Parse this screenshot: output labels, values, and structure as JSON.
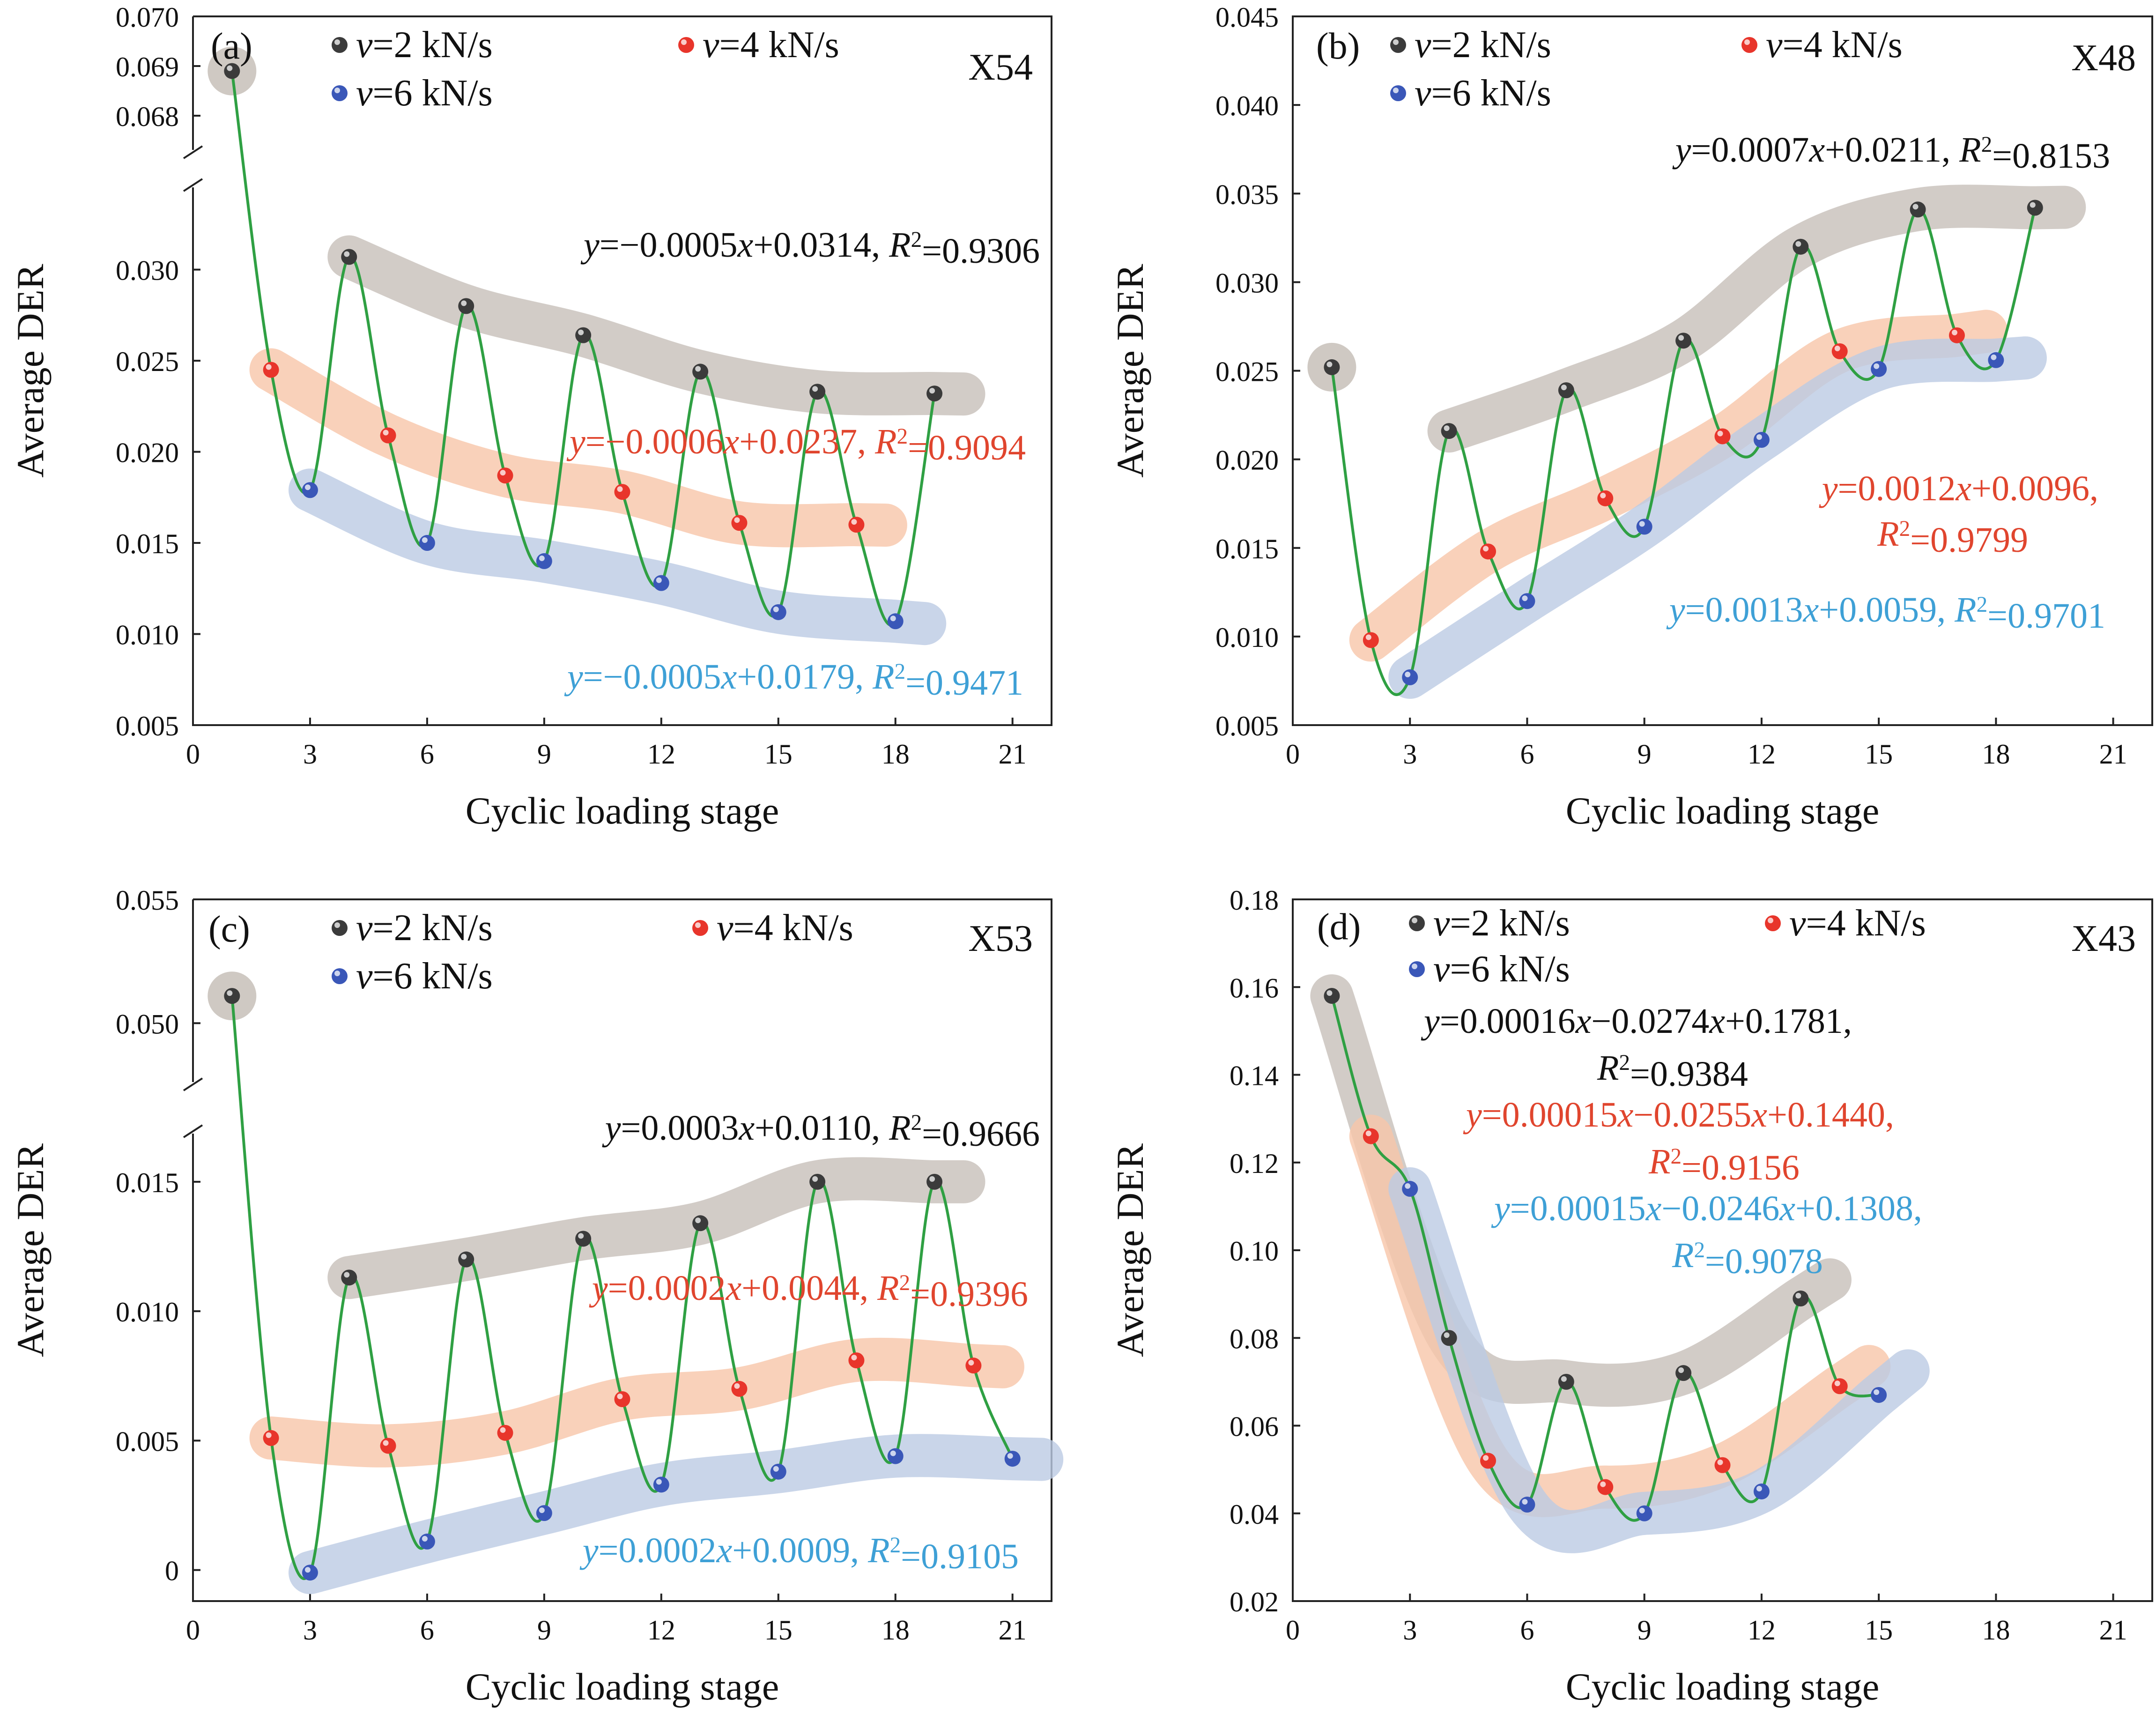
{
  "colors": {
    "s2": "#3b3b3b",
    "s4": "#e8352b",
    "s6": "#3a57b8",
    "curve": "#2fa043",
    "band2": "#c7bfb9",
    "band4": "#f8c5a9",
    "band6": "#bccae4",
    "eq2": "#111111",
    "eq4": "#e0452e",
    "eq6": "#3ea0d6"
  },
  "chart_data": [
    {
      "type": "line",
      "panel": "(a)",
      "specimen": "X54",
      "xlabel": "Cyclic loading stage",
      "ylabel": "Average DER",
      "xlim": [
        0,
        22
      ],
      "xticks": [
        "0",
        "3",
        "6",
        "9",
        "12",
        "15",
        "18",
        "21"
      ],
      "yticks_lower": [
        "0.005",
        "0.010",
        "0.015",
        "0.020",
        "0.025",
        "0.030"
      ],
      "yticks_upper": [
        "0.068",
        "0.069",
        "0.070"
      ],
      "ylim_lower": [
        0.005,
        0.034
      ],
      "ylim_upper": [
        0.0675,
        0.07
      ],
      "legend": [
        "v=2 kN/s",
        "v=4 kN/s",
        "v=6 kN/s"
      ],
      "series": [
        {
          "name": "v=2 kN/s",
          "x": [
            1,
            4,
            7,
            10,
            13,
            16,
            19
          ],
          "y": [
            0.0689,
            0.0307,
            0.028,
            0.0264,
            0.0244,
            0.0233,
            0.0232
          ]
        },
        {
          "name": "v=4 kN/s",
          "x": [
            2,
            5,
            8,
            11,
            14,
            17
          ],
          "y": [
            0.0245,
            0.0209,
            0.0187,
            0.0178,
            0.0161,
            0.016
          ]
        },
        {
          "name": "v=6 kN/s",
          "x": [
            3,
            6,
            9,
            12,
            15,
            18
          ],
          "y": [
            0.0179,
            0.015,
            0.014,
            0.0128,
            0.0112,
            0.0107
          ]
        }
      ],
      "equations": [
        {
          "series": "v=2 kN/s",
          "lines": [
            "y=−0.0005x+0.0314, R2=0.9306"
          ]
        },
        {
          "series": "v=4 kN/s",
          "lines": [
            "y=−0.0006x+0.0237, R2=0.9094"
          ]
        },
        {
          "series": "v=6 kN/s",
          "lines": [
            "y=−0.0005x+0.0179, R2=0.9471"
          ]
        }
      ]
    },
    {
      "type": "line",
      "panel": "(b)",
      "specimen": "X48",
      "xlabel": "Cyclic loading stage",
      "ylabel": "Average DER",
      "xlim": [
        0,
        22
      ],
      "xticks": [
        "0",
        "3",
        "6",
        "9",
        "12",
        "15",
        "18",
        "21"
      ],
      "yticks": [
        "0.005",
        "0.010",
        "0.015",
        "0.020",
        "0.025",
        "0.030",
        "0.035",
        "0.040",
        "0.045"
      ],
      "ylim": [
        0.005,
        0.045
      ],
      "legend": [
        "v=2 kN/s",
        "v=4 kN/s",
        "v=6 kN/s"
      ],
      "series": [
        {
          "name": "v=2 kN/s",
          "x": [
            1,
            4,
            7,
            10,
            13,
            16,
            19
          ],
          "y": [
            0.0252,
            0.0216,
            0.0239,
            0.0267,
            0.032,
            0.0341,
            0.0342
          ]
        },
        {
          "name": "v=4 kN/s",
          "x": [
            2,
            5,
            8,
            11,
            14,
            17
          ],
          "y": [
            0.0098,
            0.0148,
            0.0178,
            0.0213,
            0.0261,
            0.027
          ]
        },
        {
          "name": "v=6 kN/s",
          "x": [
            3,
            6,
            9,
            12,
            15,
            18
          ],
          "y": [
            0.0077,
            0.012,
            0.0162,
            0.0211,
            0.0251,
            0.0256
          ]
        }
      ],
      "equations": [
        {
          "series": "v=2 kN/s",
          "lines": [
            "y=0.0007x+0.0211, R2=0.8153"
          ]
        },
        {
          "series": "v=4 kN/s",
          "lines": [
            "y=0.0012x+0.0096,",
            "R2=0.9799"
          ]
        },
        {
          "series": "v=6 kN/s",
          "lines": [
            "y=0.0013x+0.0059, R2=0.9701"
          ]
        }
      ]
    },
    {
      "type": "line",
      "panel": "(c)",
      "specimen": "X53",
      "xlabel": "Cyclic loading stage",
      "ylabel": "Average DER",
      "xlim": [
        0,
        22
      ],
      "xticks": [
        "0",
        "3",
        "6",
        "9",
        "12",
        "15",
        "18",
        "21"
      ],
      "yticks_lower": [
        "0",
        "0.005",
        "0.010",
        "0.015"
      ],
      "yticks_upper": [
        "0.050",
        "0.055"
      ],
      "ylim_lower": [
        -0.0012,
        0.0165
      ],
      "ylim_upper": [
        0.048,
        0.055
      ],
      "legend": [
        "v=2 kN/s",
        "v=4 kN/s",
        "v=6 kN/s"
      ],
      "series": [
        {
          "name": "v=2 kN/s",
          "x": [
            1,
            4,
            7,
            10,
            13,
            16,
            19
          ],
          "y": [
            0.0511,
            0.0113,
            0.012,
            0.0128,
            0.0134,
            0.015,
            0.015
          ]
        },
        {
          "name": "v=4 kN/s",
          "x": [
            2,
            5,
            8,
            11,
            14,
            17,
            20
          ],
          "y": [
            0.0051,
            0.0048,
            0.0053,
            0.0066,
            0.007,
            0.0081,
            0.0079
          ]
        },
        {
          "name": "v=6 kN/s",
          "x": [
            3,
            6,
            9,
            12,
            15,
            18,
            21
          ],
          "y": [
            -0.0001,
            0.0011,
            0.0022,
            0.0033,
            0.0038,
            0.0044,
            0.0043
          ]
        }
      ],
      "equations": [
        {
          "series": "v=2 kN/s",
          "lines": [
            "y=0.0003x+0.0110, R2=0.9666"
          ]
        },
        {
          "series": "v=4 kN/s",
          "lines": [
            "y=0.0002x+0.0044, R2=0.9396"
          ]
        },
        {
          "series": "v=6 kN/s",
          "lines": [
            "y=0.0002x+0.0009, R2=0.9105"
          ]
        }
      ]
    },
    {
      "type": "line",
      "panel": "(d)",
      "specimen": "X43",
      "xlabel": "Cyclic loading stage",
      "ylabel": "Average DER",
      "xlim": [
        0,
        22
      ],
      "xticks": [
        "0",
        "3",
        "6",
        "9",
        "12",
        "15",
        "18",
        "21"
      ],
      "yticks": [
        "0.02",
        "0.04",
        "0.06",
        "0.08",
        "0.10",
        "0.12",
        "0.14",
        "0.16",
        "0.18"
      ],
      "ylim": [
        0.02,
        0.18
      ],
      "legend": [
        "v=2 kN/s",
        "v=4 kN/s",
        "v=6 kN/s"
      ],
      "series": [
        {
          "name": "v=2 kN/s",
          "x": [
            1,
            4,
            7,
            10,
            13
          ],
          "y": [
            0.158,
            0.08,
            0.07,
            0.072,
            0.089
          ]
        },
        {
          "name": "v=4 kN/s",
          "x": [
            2,
            5,
            8,
            11,
            14
          ],
          "y": [
            0.126,
            0.052,
            0.046,
            0.051,
            0.069
          ]
        },
        {
          "name": "v=6 kN/s",
          "x": [
            3,
            6,
            9,
            12,
            15
          ],
          "y": [
            0.114,
            0.042,
            0.04,
            0.045,
            0.067
          ]
        }
      ],
      "equations": [
        {
          "series": "v=2 kN/s",
          "lines": [
            "y=0.00016x−0.0274x+0.1781,",
            "R2=0.9384"
          ]
        },
        {
          "series": "v=4 kN/s",
          "lines": [
            "y=0.00015x−0.0255x+0.1440,",
            "R2=0.9156"
          ]
        },
        {
          "series": "v=6 kN/s",
          "lines": [
            "y=0.00015x−0.0246x+0.1308,",
            "R2=0.9078"
          ]
        }
      ]
    }
  ]
}
